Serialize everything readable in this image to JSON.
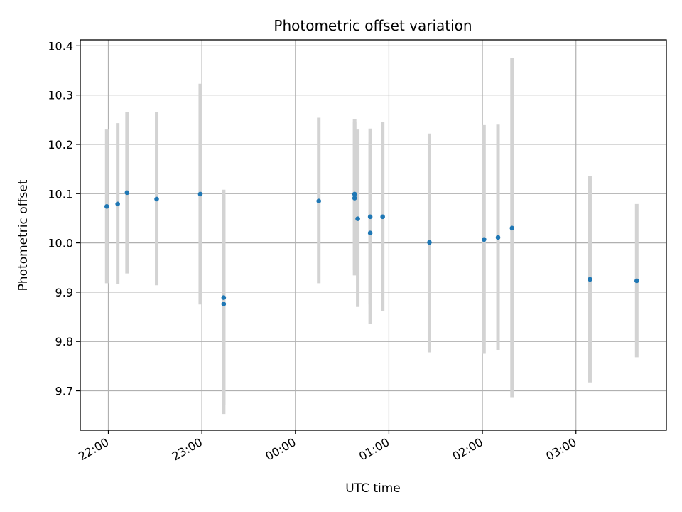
{
  "chart_data": {
    "type": "scatter",
    "title": "Photometric offset variation",
    "xlabel": "UTC time",
    "ylabel": "Photometric offset",
    "x_tick_labels": [
      "22:00",
      "23:00",
      "00:00",
      "01:00",
      "02:00",
      "03:00"
    ],
    "y_tick_labels": [
      "9.7",
      "9.8",
      "9.9",
      "10.0",
      "10.1",
      "10.2",
      "10.3",
      "10.4"
    ],
    "y_ticks": [
      9.7,
      9.8,
      9.9,
      10.0,
      10.1,
      10.2,
      10.3,
      10.4
    ],
    "x_ticks": [
      "22:00",
      "23:00",
      "00:00",
      "01:00",
      "02:00",
      "03:00"
    ],
    "xlim": [
      "21:42",
      "03:58"
    ],
    "ylim": [
      9.62,
      10.412
    ],
    "grid": true,
    "colors": {
      "points": "#1f77b4",
      "errorbars": "#d3d3d3",
      "grid": "#b0b0b0"
    },
    "series": [
      {
        "points": [
          {
            "x": "21:59",
            "y": 10.074,
            "ylo": 9.918,
            "yhi": 10.23
          },
          {
            "x": "22:06",
            "y": 10.079,
            "ylo": 9.916,
            "yhi": 10.243
          },
          {
            "x": "22:12",
            "y": 10.102,
            "ylo": 9.938,
            "yhi": 10.266
          },
          {
            "x": "22:31",
            "y": 10.089,
            "ylo": 9.914,
            "yhi": 10.266
          },
          {
            "x": "22:59",
            "y": 10.099,
            "ylo": 9.875,
            "yhi": 10.323
          },
          {
            "x": "23:14",
            "y": 9.889,
            "ylo": 9.672,
            "yhi": 10.108
          },
          {
            "x": "23:14",
            "y": 9.876,
            "ylo": 9.653,
            "yhi": 10.098
          },
          {
            "x": "00:15",
            "y": 10.085,
            "ylo": 9.918,
            "yhi": 10.254
          },
          {
            "x": "00:38",
            "y": 10.099,
            "ylo": 9.945,
            "yhi": 10.251
          },
          {
            "x": "00:38",
            "y": 10.091,
            "ylo": 9.934,
            "yhi": 10.246
          },
          {
            "x": "00:40",
            "y": 10.049,
            "ylo": 9.87,
            "yhi": 10.23
          },
          {
            "x": "00:48",
            "y": 10.053,
            "ylo": 9.875,
            "yhi": 10.232
          },
          {
            "x": "00:48",
            "y": 10.02,
            "ylo": 9.835,
            "yhi": 10.204
          },
          {
            "x": "00:56",
            "y": 10.053,
            "ylo": 9.861,
            "yhi": 10.246
          },
          {
            "x": "01:26",
            "y": 10.001,
            "ylo": 9.778,
            "yhi": 10.222
          },
          {
            "x": "02:01",
            "y": 10.007,
            "ylo": 9.775,
            "yhi": 10.239
          },
          {
            "x": "02:10",
            "y": 10.011,
            "ylo": 9.783,
            "yhi": 10.24
          },
          {
            "x": "02:19",
            "y": 10.03,
            "ylo": 9.687,
            "yhi": 10.376
          },
          {
            "x": "03:09",
            "y": 9.926,
            "ylo": 9.717,
            "yhi": 10.136
          },
          {
            "x": "03:39",
            "y": 9.923,
            "ylo": 9.768,
            "yhi": 10.079
          }
        ]
      }
    ]
  }
}
